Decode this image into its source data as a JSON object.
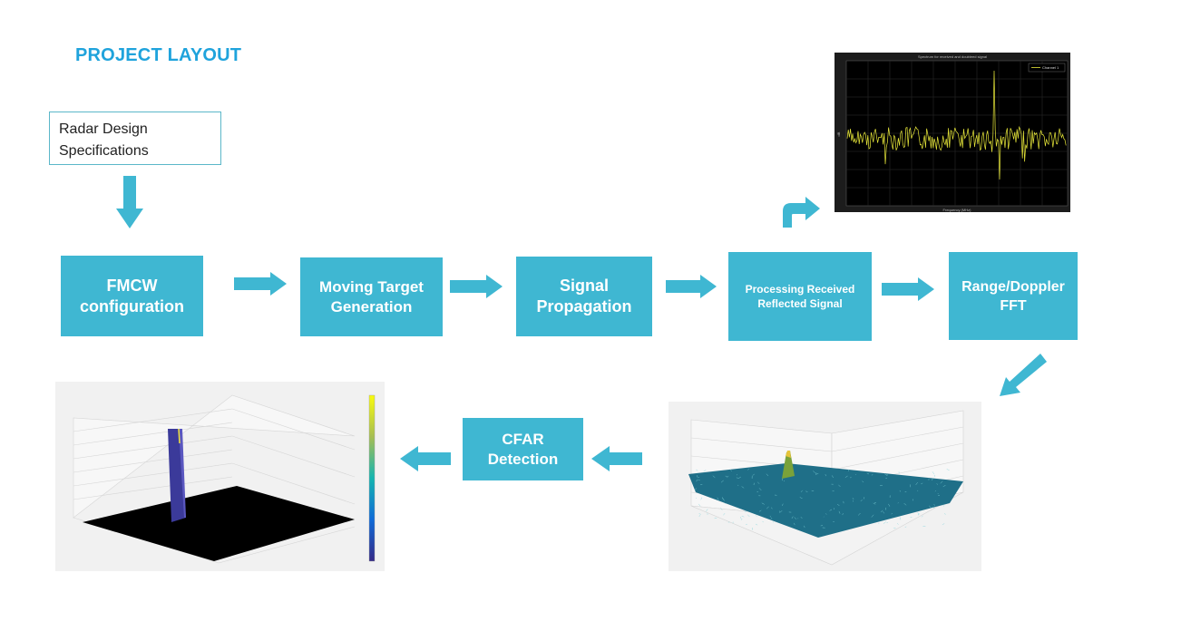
{
  "title": "PROJECT LAYOUT",
  "spec_box": {
    "line1": "Radar Design",
    "line2": "Specifications"
  },
  "blocks": {
    "fmcw": "FMCW\nconfiguration",
    "moving_target": "Moving Target\nGeneration",
    "signal_propagation": "Signal\nPropagation",
    "processing": "Processing Received\nReflected Signal",
    "range_doppler": "Range/Doppler\nFFT",
    "cfar": "CFAR\nDetection"
  },
  "spectrum_plot": {
    "title": "Spectrum for received and doubleed signal",
    "legend": "Channel 1",
    "xlabel": "Frequency (MHz)",
    "ylabel": "dB"
  },
  "colors": {
    "title": "#1fa3dc",
    "block": "#3fb7d2",
    "arrow": "#3fb7d2",
    "spectrum_bg": "#000000",
    "spectrum_line": "#e8e83a",
    "surface": "#1f6f88",
    "cfar_peak": "#3b3a9a",
    "cfar_floor": "#000000"
  }
}
